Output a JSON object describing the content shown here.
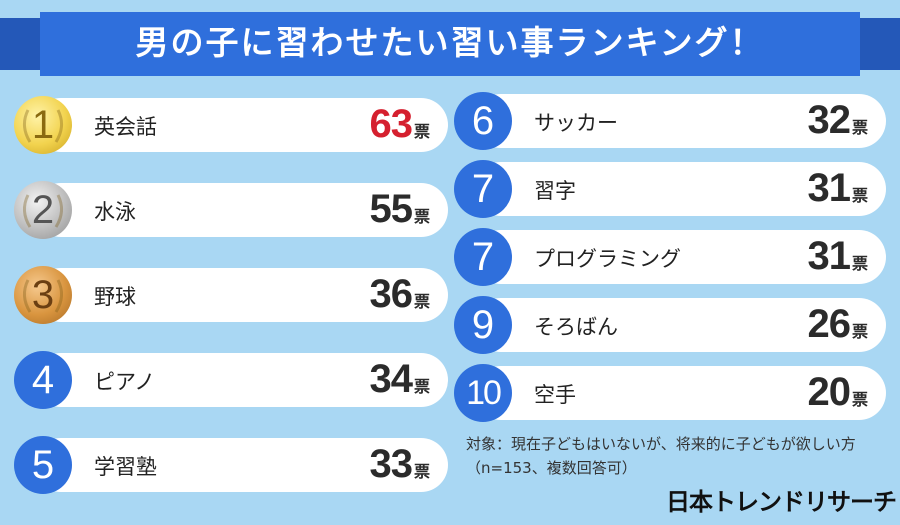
{
  "title": "男の子に習わせたい習い事ランキング！",
  "chart_data": {
    "type": "bar",
    "title": "男の子に習わせたい習い事ランキング！",
    "unit": "票",
    "rows": [
      {
        "rank": "1",
        "label": "英会話",
        "value": 63
      },
      {
        "rank": "2",
        "label": "水泳",
        "value": 55
      },
      {
        "rank": "3",
        "label": "野球",
        "value": 36
      },
      {
        "rank": "4",
        "label": "ピアノ",
        "value": 34
      },
      {
        "rank": "5",
        "label": "学習塾",
        "value": 33
      },
      {
        "rank": "6",
        "label": "サッカー",
        "value": 32
      },
      {
        "rank": "7",
        "label": "習字",
        "value": 31
      },
      {
        "rank": "7",
        "label": "プログラミング",
        "value": 31
      },
      {
        "rank": "9",
        "label": "そろばん",
        "value": 26
      },
      {
        "rank": "10",
        "label": "空手",
        "value": 20
      }
    ]
  },
  "colors": {
    "background": "#a9d7f3",
    "banner": "#2f6fdc",
    "medal_blue": "#2f6fdc",
    "highlight_value": "#d5202f",
    "medal_gold": "#f2d34e",
    "medal_silver": "#bdbdbd",
    "medal_bronze": "#d9953f"
  },
  "icons": {
    "top3": "laurel-wreath-icon"
  },
  "footnote": {
    "line1": "対象：現在子どもはいないが、将来的に子どもが欲しい方",
    "line2": "（n=153、複数回答可）"
  },
  "brand": "日本トレンドリサーチ"
}
